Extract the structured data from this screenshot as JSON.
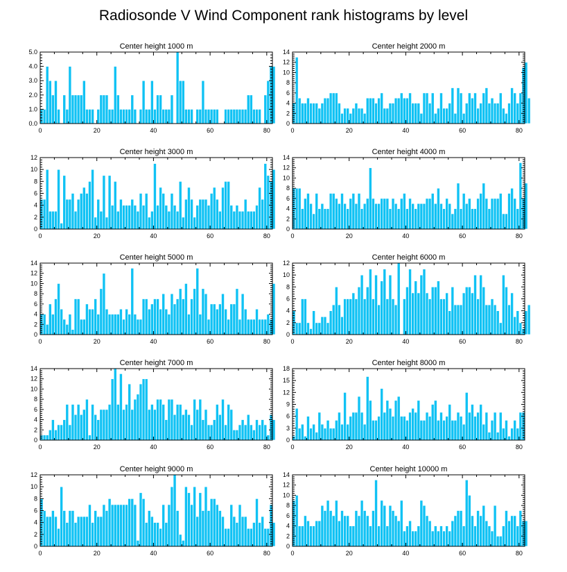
{
  "page_title": "Radiosonde V Wind Component rank histograms by level",
  "colors": {
    "bar_fill": "#10C2F4",
    "bar_stroke": "#ffffff",
    "axis": "#000000",
    "background": "#ffffff"
  },
  "chart_data": [
    {
      "type": "bar",
      "title": "Center height 1000 m",
      "xlim": [
        0,
        82
      ],
      "ylim": [
        0,
        5
      ],
      "xticks": [
        0,
        20,
        40,
        60,
        80
      ],
      "yticks": [
        0,
        1,
        2,
        3,
        4,
        5
      ],
      "ytick_labels": [
        "0.0",
        "1.0",
        "2.0",
        "3.0",
        "4.0",
        "5.0"
      ],
      "values": [
        1,
        1,
        4,
        3,
        2,
        3,
        1,
        0,
        2,
        1,
        4,
        2,
        2,
        2,
        2,
        3,
        1,
        1,
        1,
        0,
        1,
        2,
        2,
        2,
        1,
        1,
        4,
        2,
        1,
        1,
        1,
        1,
        2,
        1,
        0,
        1,
        3,
        1,
        1,
        3,
        1,
        2,
        2,
        1,
        1,
        1,
        2,
        0,
        5,
        3,
        3,
        1,
        1,
        1,
        0,
        1,
        1,
        3,
        1,
        1,
        1,
        1,
        1,
        0,
        0,
        1,
        1,
        1,
        1,
        1,
        1,
        1,
        1,
        2,
        2,
        1,
        1,
        1,
        0,
        2,
        3,
        4,
        4
      ]
    },
    {
      "type": "bar",
      "title": "Center height 2000 m",
      "xlim": [
        0,
        82
      ],
      "ylim": [
        0,
        14
      ],
      "xticks": [
        0,
        20,
        40,
        60,
        80
      ],
      "yticks": [
        0,
        2,
        4,
        6,
        8,
        10,
        12,
        14
      ],
      "values": [
        4,
        13,
        5,
        4,
        4,
        5,
        4,
        4,
        4,
        3,
        4,
        5,
        5,
        6,
        6,
        6,
        4,
        2,
        3,
        3,
        2,
        3,
        4,
        3,
        3,
        2,
        5,
        5,
        5,
        4,
        5,
        6,
        3,
        3,
        4,
        4,
        5,
        5,
        6,
        5,
        5,
        6,
        4,
        4,
        4,
        2,
        6,
        6,
        4,
        6,
        2,
        3,
        6,
        3,
        3,
        4,
        7,
        2,
        7,
        6,
        2,
        4,
        6,
        5,
        6,
        3,
        4,
        6,
        7,
        4,
        5,
        4,
        4,
        6,
        3,
        2,
        4,
        7,
        6,
        4,
        6,
        11,
        12,
        5
      ]
    },
    {
      "type": "bar",
      "title": "Center height 3000 m",
      "xlim": [
        0,
        82
      ],
      "ylim": [
        0,
        12
      ],
      "xticks": [
        0,
        20,
        40,
        60,
        80
      ],
      "yticks": [
        0,
        2,
        4,
        6,
        8,
        10,
        12
      ],
      "values": [
        5,
        5,
        10,
        3,
        3,
        3,
        10,
        1,
        9,
        5,
        5,
        6,
        3,
        5,
        6,
        7,
        6,
        8,
        10,
        2,
        5,
        3,
        9,
        2,
        9,
        4,
        8,
        3,
        5,
        4,
        4,
        4,
        5,
        4,
        3,
        6,
        4,
        6,
        2,
        3,
        11,
        4,
        7,
        6,
        4,
        3,
        6,
        4,
        3,
        8,
        2,
        5,
        7,
        5,
        2,
        4,
        5,
        5,
        5,
        4,
        6,
        7,
        5,
        3,
        7,
        8,
        8,
        4,
        3,
        4,
        3,
        3,
        5,
        3,
        3,
        3,
        4,
        7,
        5,
        11,
        9,
        8,
        10
      ]
    },
    {
      "type": "bar",
      "title": "Center height 4000 m",
      "xlim": [
        0,
        82
      ],
      "ylim": [
        0,
        14
      ],
      "xticks": [
        0,
        20,
        40,
        60,
        80
      ],
      "yticks": [
        0,
        2,
        4,
        6,
        8,
        10,
        12,
        14
      ],
      "values": [
        8,
        8,
        8,
        4,
        6,
        7,
        5,
        3,
        7,
        4,
        5,
        4,
        4,
        7,
        7,
        6,
        5,
        7,
        5,
        4,
        6,
        7,
        5,
        7,
        4,
        5,
        6,
        12,
        6,
        5,
        5,
        6,
        6,
        6,
        4,
        6,
        5,
        4,
        6,
        7,
        4,
        6,
        5,
        4,
        5,
        5,
        5,
        6,
        6,
        7,
        5,
        8,
        5,
        4,
        6,
        5,
        3,
        4,
        9,
        4,
        7,
        5,
        6,
        4,
        4,
        6,
        7,
        9,
        6,
        4,
        6,
        6,
        6,
        7,
        3,
        3,
        7,
        8,
        6,
        4,
        13,
        6,
        9
      ]
    },
    {
      "type": "bar",
      "title": "Center height 5000 m",
      "xlim": [
        0,
        82
      ],
      "ylim": [
        0,
        14
      ],
      "xticks": [
        0,
        20,
        40,
        60,
        80
      ],
      "yticks": [
        0,
        2,
        4,
        6,
        8,
        10,
        12,
        14
      ],
      "values": [
        4,
        4,
        2,
        6,
        4,
        7,
        10,
        5,
        3,
        2,
        4,
        1,
        7,
        7,
        3,
        3,
        6,
        5,
        5,
        7,
        4,
        9,
        12,
        5,
        4,
        4,
        4,
        4,
        5,
        3,
        5,
        4,
        13,
        4,
        3,
        3,
        7,
        7,
        5,
        6,
        7,
        7,
        5,
        8,
        5,
        4,
        8,
        6,
        7,
        9,
        7,
        10,
        4,
        7,
        9,
        13,
        4,
        9,
        8,
        3,
        6,
        6,
        5,
        6,
        8,
        5,
        3,
        6,
        6,
        9,
        3,
        8,
        5,
        3,
        3,
        3,
        5,
        3,
        3,
        3,
        4,
        3,
        10
      ]
    },
    {
      "type": "bar",
      "title": "Center height 6000 m",
      "xlim": [
        0,
        82
      ],
      "ylim": [
        0,
        12
      ],
      "xticks": [
        0,
        20,
        40,
        60,
        80
      ],
      "yticks": [
        0,
        2,
        4,
        6,
        8,
        10,
        12
      ],
      "values": [
        4,
        2,
        2,
        6,
        6,
        2,
        1,
        4,
        2,
        2,
        3,
        3,
        2,
        4,
        5,
        8,
        5,
        3,
        6,
        6,
        6,
        7,
        6,
        8,
        10,
        6,
        8,
        11,
        6,
        10,
        5,
        9,
        11,
        6,
        10,
        6,
        5,
        12,
        0,
        6,
        8,
        11,
        7,
        9,
        7,
        10,
        11,
        7,
        6,
        8,
        8,
        9,
        6,
        6,
        7,
        4,
        8,
        5,
        5,
        5,
        7,
        8,
        8,
        7,
        10,
        6,
        10,
        8,
        5,
        5,
        6,
        5,
        4,
        2,
        10,
        8,
        5,
        7,
        3,
        4,
        2,
        1,
        4,
        5
      ]
    },
    {
      "type": "bar",
      "title": "Center height 7000 m",
      "xlim": [
        0,
        82
      ],
      "ylim": [
        0,
        14
      ],
      "xticks": [
        0,
        20,
        40,
        60,
        80
      ],
      "yticks": [
        0,
        2,
        4,
        6,
        8,
        10,
        12,
        14
      ],
      "values": [
        1,
        1,
        1,
        2,
        4,
        2,
        3,
        3,
        4,
        7,
        3,
        7,
        5,
        7,
        5,
        6,
        8,
        1,
        7,
        5,
        4,
        6,
        6,
        6,
        7,
        12,
        14,
        7,
        13,
        6,
        7,
        11,
        6,
        8,
        9,
        11,
        12,
        12,
        6,
        7,
        6,
        8,
        8,
        7,
        4,
        8,
        8,
        5,
        7,
        7,
        5,
        6,
        5,
        3,
        8,
        6,
        8,
        4,
        6,
        3,
        3,
        4,
        7,
        5,
        8,
        3,
        7,
        6,
        2,
        2,
        3,
        4,
        3,
        5,
        3,
        2,
        4,
        3,
        4,
        3,
        1,
        5,
        4
      ]
    },
    {
      "type": "bar",
      "title": "Center height 8000 m",
      "xlim": [
        0,
        82
      ],
      "ylim": [
        0,
        18
      ],
      "xticks": [
        0,
        20,
        40,
        60,
        80
      ],
      "yticks": [
        0,
        3,
        6,
        9,
        12,
        15,
        18
      ],
      "values": [
        1,
        8,
        3,
        4,
        1,
        6,
        3,
        4,
        2,
        7,
        4,
        3,
        5,
        3,
        3,
        5,
        7,
        4,
        12,
        4,
        6,
        7,
        7,
        11,
        7,
        4,
        16,
        10,
        5,
        5,
        6,
        13,
        7,
        10,
        8,
        6,
        10,
        11,
        6,
        6,
        5,
        7,
        8,
        7,
        10,
        5,
        5,
        7,
        6,
        9,
        10,
        5,
        7,
        5,
        6,
        9,
        5,
        5,
        7,
        6,
        4,
        12,
        7,
        9,
        6,
        7,
        9,
        4,
        7,
        2,
        5,
        7,
        2,
        7,
        3,
        5,
        1,
        3,
        5,
        3,
        7,
        7
      ]
    },
    {
      "type": "bar",
      "title": "Center height 9000 m",
      "xlim": [
        0,
        82
      ],
      "ylim": [
        0,
        12
      ],
      "xticks": [
        0,
        20,
        40,
        60,
        80
      ],
      "yticks": [
        0,
        2,
        4,
        6,
        8,
        10,
        12
      ],
      "values": [
        8,
        6,
        5,
        5,
        6,
        5,
        3,
        10,
        6,
        4,
        6,
        6,
        4,
        5,
        5,
        5,
        5,
        7,
        4,
        6,
        5,
        5,
        7,
        6,
        8,
        7,
        7,
        7,
        7,
        7,
        7,
        8,
        8,
        7,
        1,
        9,
        8,
        4,
        6,
        5,
        4,
        4,
        3,
        7,
        4,
        7,
        10,
        12,
        6,
        2,
        1,
        10,
        9,
        7,
        10,
        5,
        9,
        6,
        10,
        6,
        8,
        8,
        7,
        6,
        5,
        3,
        3,
        7,
        5,
        4,
        7,
        5,
        5,
        3,
        3,
        4,
        8,
        4,
        5,
        3,
        3,
        7,
        4
      ]
    },
    {
      "type": "bar",
      "title": "Center height 10000 m",
      "xlim": [
        0,
        82
      ],
      "ylim": [
        0,
        14
      ],
      "xticks": [
        0,
        20,
        40,
        60,
        80
      ],
      "yticks": [
        0,
        2,
        4,
        6,
        8,
        10,
        12,
        14
      ],
      "values": [
        9,
        10,
        4,
        4,
        6,
        5,
        4,
        4,
        5,
        5,
        8,
        7,
        9,
        7,
        6,
        9,
        5,
        7,
        6,
        6,
        4,
        4,
        7,
        6,
        9,
        7,
        6,
        4,
        7,
        13,
        4,
        9,
        8,
        4,
        8,
        7,
        6,
        5,
        9,
        3,
        4,
        5,
        3,
        3,
        4,
        9,
        8,
        6,
        5,
        3,
        4,
        3,
        4,
        3,
        4,
        3,
        5,
        6,
        7,
        7,
        4,
        13,
        10,
        6,
        4,
        7,
        6,
        8,
        5,
        4,
        3,
        8,
        2,
        2,
        4,
        7,
        5,
        6,
        6,
        4,
        7,
        5,
        5
      ]
    }
  ]
}
